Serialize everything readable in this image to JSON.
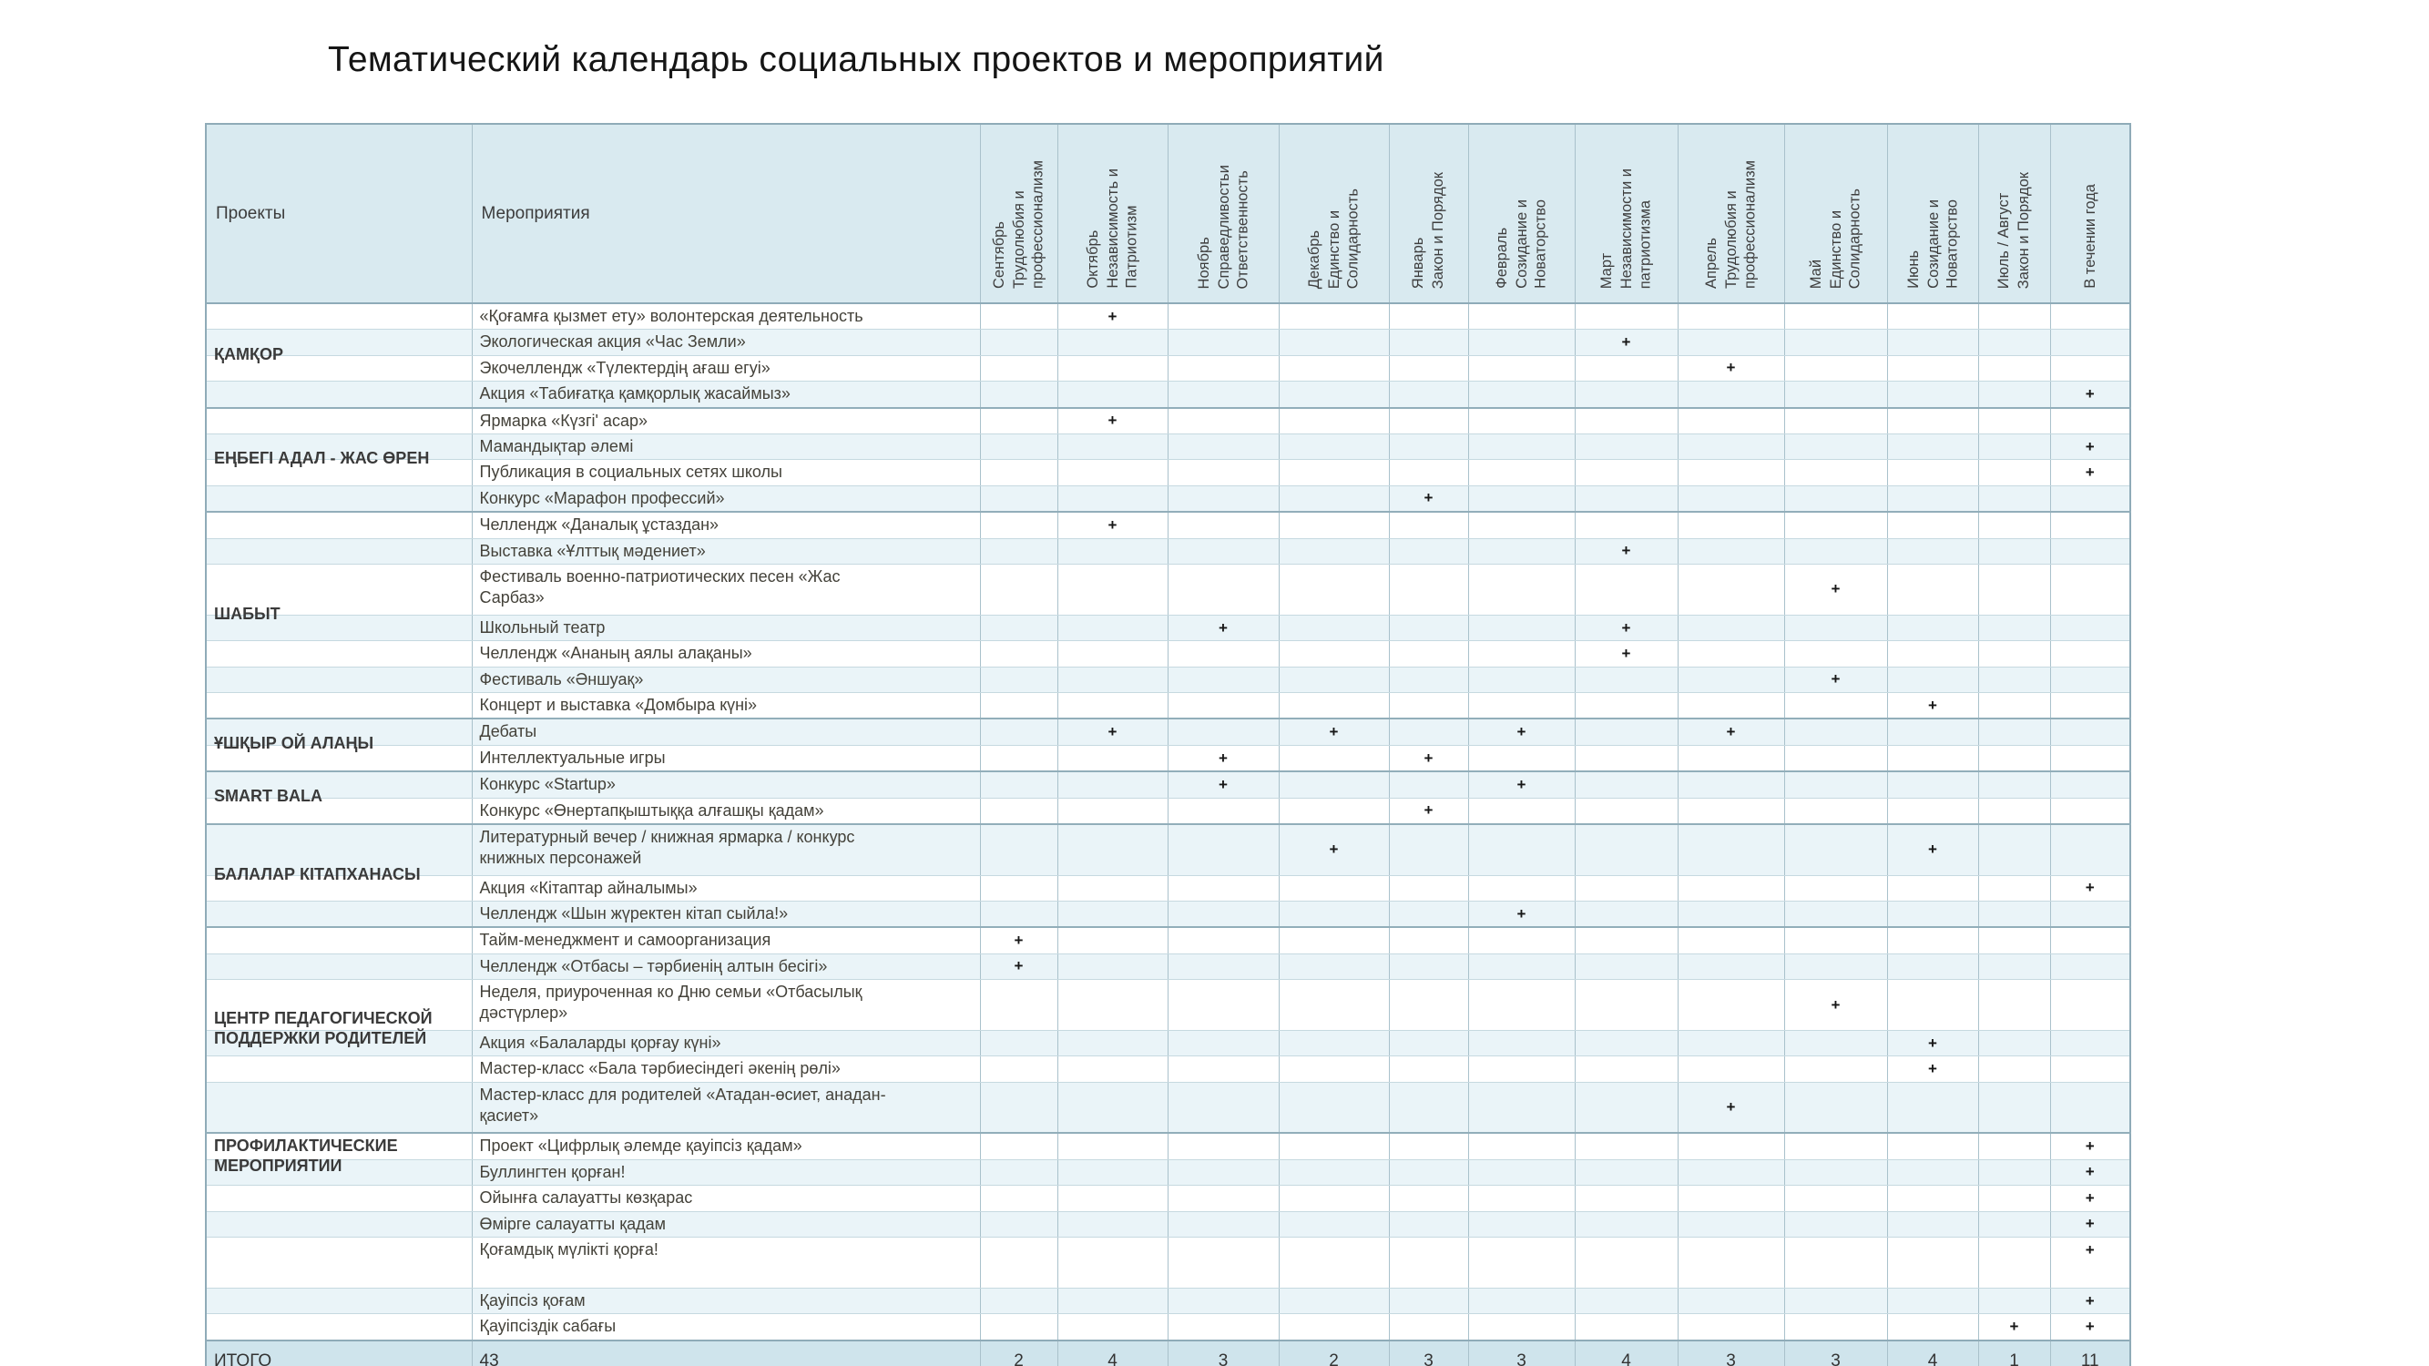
{
  "title": "Тематический календарь социальных проектов и мероприятий",
  "plus_symbol": "+",
  "table": {
    "col_headers": {
      "projects": "Проекты",
      "events": "Мероприятия"
    },
    "months": [
      {
        "name": "Сентябрь",
        "motto": "Трудолюбия и\nпрофессионализм"
      },
      {
        "name": "Октябрь",
        "motto": "Независимость и\nПатриотизм"
      },
      {
        "name": "Ноябрь",
        "motto": "Справедливостьи\nОтветственность"
      },
      {
        "name": "Декабрь",
        "motto": "Единство и\nСолидарность"
      },
      {
        "name": "Январь",
        "motto": "Закон и Порядок"
      },
      {
        "name": "Февраль",
        "motto": "Созидание и\nНоваторство"
      },
      {
        "name": "Март",
        "motto": "Независимости и\nпатриотизма"
      },
      {
        "name": "Апрель",
        "motto": "Трудолюбия и\nпрофессионализм"
      },
      {
        "name": "Май",
        "motto": "Единство и\nСолидарность"
      },
      {
        "name": "Июнь",
        "motto": "Созидание и\nНоваторство"
      },
      {
        "name": "Июль / Август",
        "motto": "Закон и Порядок"
      },
      {
        "name": "В течении года",
        "motto": ""
      }
    ],
    "groups": [
      {
        "project": "ҚАМҚОР",
        "rows": [
          {
            "event": "«Қоғамға қызмет ету» волонтерская деятельность",
            "plus_months": [
              "Октябрь"
            ]
          },
          {
            "event": "Экологическая акция «Час Земли»",
            "plus_months": [
              "Март"
            ]
          },
          {
            "event": "Экочеллендж «Түлектердің ағаш егуі»",
            "plus_months": [
              "Апрель"
            ]
          },
          {
            "event": "Акция «Табиғатқа қамқорлық жасаймыз»",
            "plus_months": [
              "В течении года"
            ]
          }
        ]
      },
      {
        "project": "ЕҢБЕГІ АДАЛ - ЖАС ӨРЕН",
        "rows": [
          {
            "event": "Ярмарка «Күзгі' асар»",
            "plus_months": [
              "Октябрь"
            ]
          },
          {
            "event": "Мамандықтар әлемі",
            "plus_months": [
              "В течении года"
            ]
          },
          {
            "event": "Публикация в социальных сетях школы",
            "plus_months": [
              "В течении года"
            ]
          },
          {
            "event": "Конкурс «Марафон профессий»",
            "plus_months": [
              "Январь"
            ]
          }
        ]
      },
      {
        "project": "ШАБЫТ",
        "rows": [
          {
            "event": "Челлендж «Даналық ұстаздан»",
            "plus_months": [
              "Октябрь"
            ]
          },
          {
            "event": "Выставка «Ұлттық мәдениет»",
            "plus_months": [
              "Март"
            ]
          },
          {
            "event": "Фестиваль военно-патриотических песен «Жас\nСарбаз»",
            "plus_months": [
              "Май"
            ],
            "tall": true
          },
          {
            "event": "Школьный театр",
            "plus_months": [
              "Ноябрь",
              "Март"
            ]
          },
          {
            "event": "Челлендж «Ананың аялы алақаны»",
            "plus_months": [
              "Март"
            ]
          },
          {
            "event": "Фестиваль «Әншуақ»",
            "plus_months": [
              "Май"
            ]
          },
          {
            "event": "Концерт и выставка «Домбыра күні»",
            "plus_months": [
              "Июнь"
            ]
          }
        ]
      },
      {
        "project": "ҰШҚЫР ОЙ АЛАҢЫ",
        "rows": [
          {
            "event": "Дебаты",
            "plus_months": [
              "Октябрь",
              "Декабрь",
              "Февраль",
              "Апрель"
            ]
          },
          {
            "event": "Интеллектуальные игры",
            "plus_months": [
              "Ноябрь",
              "Январь"
            ]
          }
        ]
      },
      {
        "project": "SMART BALA",
        "rows": [
          {
            "event": "Конкурс «Startup»",
            "plus_months": [
              "Ноябрь",
              "Февраль"
            ]
          },
          {
            "event": "Конкурс «Өнертапқыштыққа алғашқы қадам»",
            "plus_months": [
              "Январь"
            ]
          }
        ]
      },
      {
        "project": "БАЛАЛАР КІТАПХАНАСЫ",
        "rows": [
          {
            "event": "Литературный вечер / книжная ярмарка / конкурс\nкнижных персонажей",
            "plus_months": [
              "Декабрь",
              "Июнь"
            ],
            "tall": true
          },
          {
            "event": "Акция «Кітаптар айналымы»",
            "plus_months": [
              "В течении года"
            ]
          },
          {
            "event": "Челлендж «Шын жүректен кітап сыйла!»",
            "plus_months": [
              "Февраль"
            ]
          }
        ]
      },
      {
        "project": "ЦЕНТР ПЕДАГОГИЧЕСКОЙ\nПОДДЕРЖКИ РОДИТЕЛЕЙ",
        "rows": [
          {
            "event": "Тайм-менеджмент и самоорганизация",
            "plus_months": [
              "Сентябрь"
            ]
          },
          {
            "event": "Челлендж «Отбасы – тәрбиенің алтын бесігі»",
            "plus_months": [
              "Сентябрь"
            ]
          },
          {
            "event": "Неделя, приуроченная ко Дню семьи «Отбасылық\nдәстүрлер»",
            "plus_months": [
              "Май"
            ],
            "tall": true
          },
          {
            "event": "Акция «Балаларды қорғау күні»",
            "plus_months": [
              "Июнь"
            ]
          },
          {
            "event": "Мастер-класс «Бала тәрбиесіндегі әкенің рөлі»",
            "plus_months": [
              "Июнь"
            ]
          },
          {
            "event": "Мастер-класс для родителей «Атадан-өсиет, анадан-\nқасиет»",
            "plus_months": [
              "Апрель"
            ],
            "tall": true
          }
        ]
      },
      {
        "project": "ПРОФИЛАКТИЧЕСКИЕ\nМЕРОПРИЯТИИ",
        "rows": [
          {
            "event": "Проект «Цифрлық әлемде қауіпсіз қадам»",
            "plus_months": [
              "В течении года"
            ]
          },
          {
            "event": "Буллингтен қорған!",
            "plus_months": [
              "В течении года"
            ]
          },
          {
            "event": "Ойынға салауатты көзқарас",
            "plus_months": [
              "В течении года"
            ]
          },
          {
            "event": "Өмірге салауатты қадам",
            "plus_months": [
              "В течении года"
            ]
          },
          {
            "event": "Қоғамдық мүлікті қорға!",
            "plus_months": [
              "В течении года"
            ],
            "tall": true,
            "mark_top": true
          },
          {
            "event": "Қауіпсіз қоғам",
            "plus_months": [
              "В течении года"
            ]
          },
          {
            "event": "Қауіпсіздік сабағы",
            "plus_months": [
              "Июль / Август",
              "В течении года"
            ]
          }
        ]
      }
    ],
    "total_row": {
      "label": "ИТОГО",
      "events_total": "43",
      "values": [
        2,
        4,
        3,
        2,
        3,
        3,
        4,
        3,
        3,
        4,
        1,
        11
      ]
    }
  }
}
